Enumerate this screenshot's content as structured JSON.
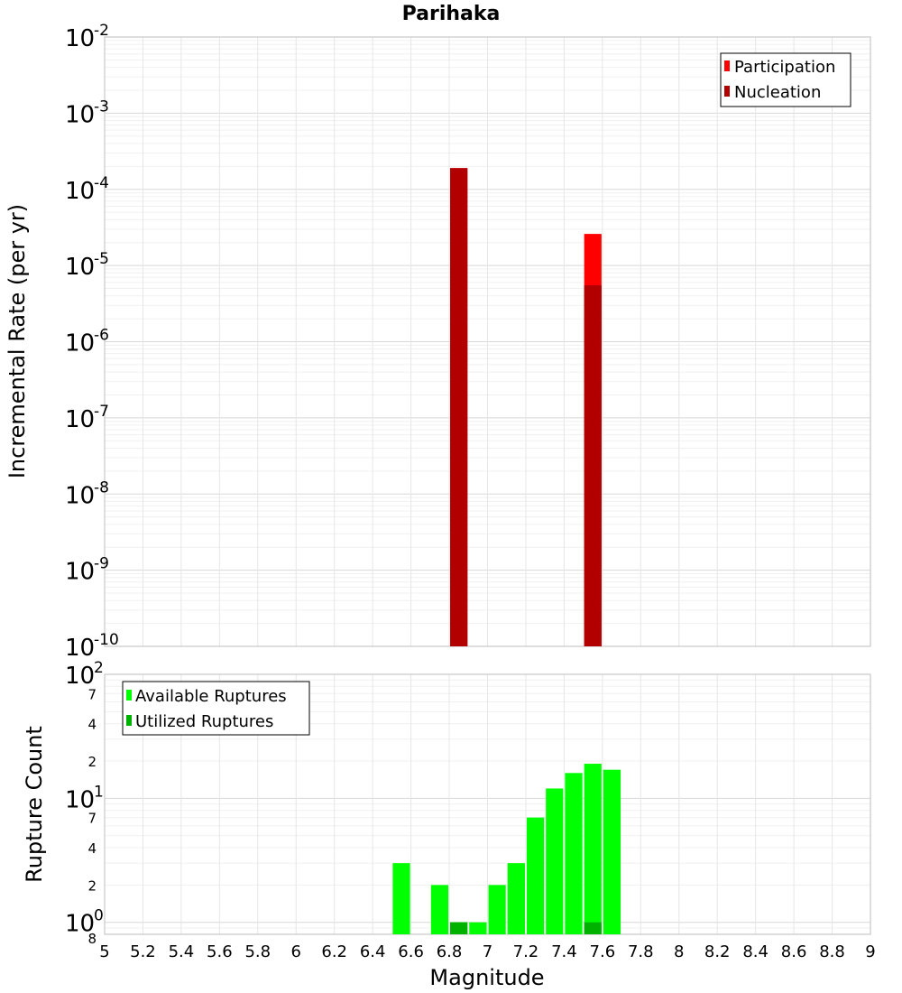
{
  "chart_data": [
    {
      "type": "bar",
      "title": "Parihaka",
      "xlabel": "",
      "ylabel": "Incremental Rate (per yr)",
      "yscale": "log",
      "ylim": [
        "1e-10",
        "1e-2"
      ],
      "xlim": [
        5,
        9
      ],
      "grid": true,
      "legend_position": "top-right",
      "series": [
        {
          "name": "Participation",
          "color": "#ff0000",
          "x": [
            6.85,
            7.55
          ],
          "values": [
            0.00019,
            2.6e-05
          ]
        },
        {
          "name": "Nucleation",
          "color": "#b20000",
          "x": [
            6.85,
            7.55
          ],
          "values": [
            0.00019,
            5.5e-06
          ]
        }
      ],
      "y_tick_labels": [
        {
          "base": "10",
          "exp": "-2"
        },
        {
          "base": "10",
          "exp": "-3"
        },
        {
          "base": "10",
          "exp": "-4"
        },
        {
          "base": "10",
          "exp": "-5"
        },
        {
          "base": "10",
          "exp": "-6"
        },
        {
          "base": "10",
          "exp": "-7"
        },
        {
          "base": "10",
          "exp": "-8"
        },
        {
          "base": "10",
          "exp": "-9"
        },
        {
          "base": "10",
          "exp": "-10"
        }
      ]
    },
    {
      "type": "bar",
      "title": "",
      "xlabel": "Magnitude",
      "ylabel": "Rupture Count",
      "yscale": "log",
      "ylim": [
        0.8,
        100
      ],
      "xlim": [
        5,
        9
      ],
      "grid": true,
      "legend_position": "top-left",
      "series": [
        {
          "name": "Available Ruptures",
          "color": "#00ff00",
          "x": [
            6.55,
            6.75,
            6.85,
            6.95,
            7.05,
            7.15,
            7.25,
            7.35,
            7.45,
            7.55,
            7.65
          ],
          "values": [
            3,
            2,
            1,
            1,
            2,
            3,
            7,
            12,
            16,
            19,
            17
          ]
        },
        {
          "name": "Utilized Ruptures",
          "color": "#00b200",
          "x": [
            6.85,
            7.55
          ],
          "values": [
            1,
            1
          ]
        }
      ],
      "x_tick_labels": [
        "5",
        "5.2",
        "5.4",
        "5.6",
        "5.8",
        "6",
        "6.2",
        "6.4",
        "6.6",
        "6.8",
        "7",
        "7.2",
        "7.4",
        "7.6",
        "7.8",
        "8",
        "8.2",
        "8.4",
        "8.6",
        "8.8",
        "9"
      ],
      "y_major_labels": [
        {
          "base": "10",
          "exp": "2"
        },
        {
          "base": "10",
          "exp": "1"
        },
        {
          "base": "10",
          "exp": "0"
        }
      ],
      "y_minor_labels": [
        "7",
        "4",
        "2",
        "7",
        "4",
        "2",
        "8"
      ]
    }
  ]
}
